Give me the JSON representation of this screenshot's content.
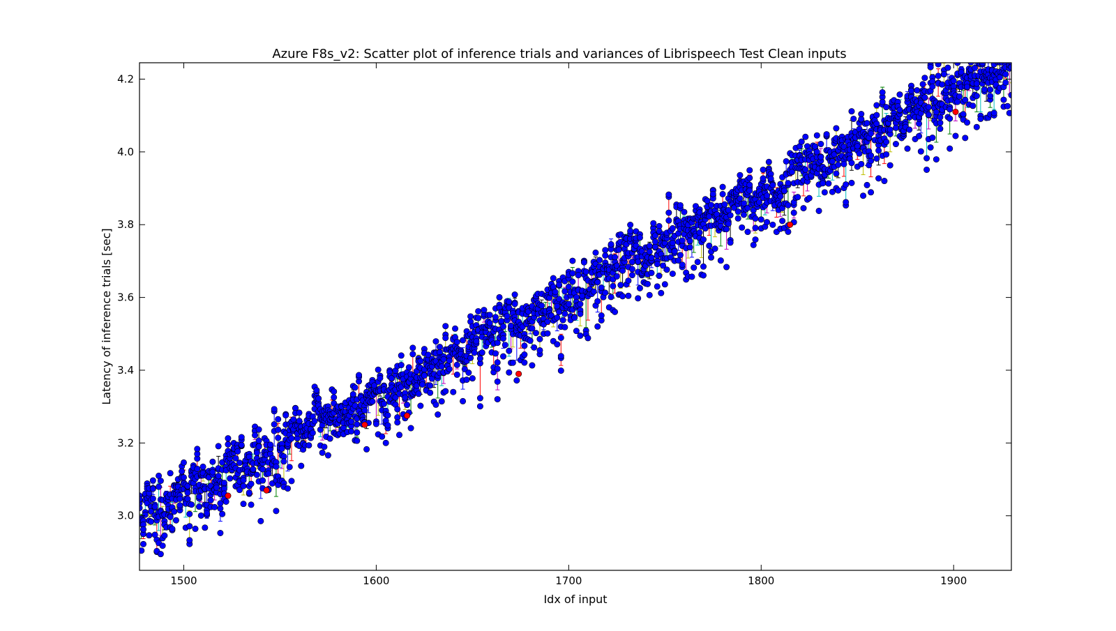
{
  "chart_data": {
    "type": "scatter",
    "title": "Azure F8s_v2: Scatter plot of inference trials and variances of Librispeech Test Clean inputs",
    "xlabel": "Idx of input",
    "ylabel": "Latency of inference trials [sec]",
    "xlim": [
      1477,
      1930
    ],
    "ylim": [
      2.85,
      4.245
    ],
    "xticks": [
      1500,
      1600,
      1700,
      1800,
      1900
    ],
    "yticks": [
      3.0,
      3.2,
      3.4,
      3.6,
      3.8,
      4.0,
      4.2
    ],
    "xtick_labels": [
      "1500",
      "1600",
      "1700",
      "1800",
      "1900"
    ],
    "ytick_labels": [
      "3.0",
      "3.2",
      "3.4",
      "3.6",
      "3.8",
      "4.0",
      "4.2"
    ],
    "grid": false,
    "trend": {
      "x": [
        1477,
        1930
      ],
      "y": [
        3.0,
        4.26
      ]
    },
    "trials_per_input": 5,
    "series": [
      {
        "color": "#0000ff",
        "values": "per-input inference trial latencies (blue markers)"
      },
      {
        "color": "#ff0000",
        "values": "highlighted trial points (red markers)"
      }
    ],
    "red_points": [
      {
        "x": 1523,
        "y": 3.055
      },
      {
        "x": 1543,
        "y": 3.07
      },
      {
        "x": 1594,
        "y": 3.25
      },
      {
        "x": 1616,
        "y": 3.275
      },
      {
        "x": 1674,
        "y": 3.39
      },
      {
        "x": 1815,
        "y": 3.8
      },
      {
        "x": 1901,
        "y": 4.11
      }
    ],
    "errorbar_colors": [
      "#0000ff",
      "#008000",
      "#ff0000",
      "#00bfbf",
      "#bf00bf",
      "#bfbf00",
      "#000000"
    ],
    "colors": {
      "point": "#0000ff",
      "highlight": "#ff0000",
      "axis": "#000000"
    }
  }
}
